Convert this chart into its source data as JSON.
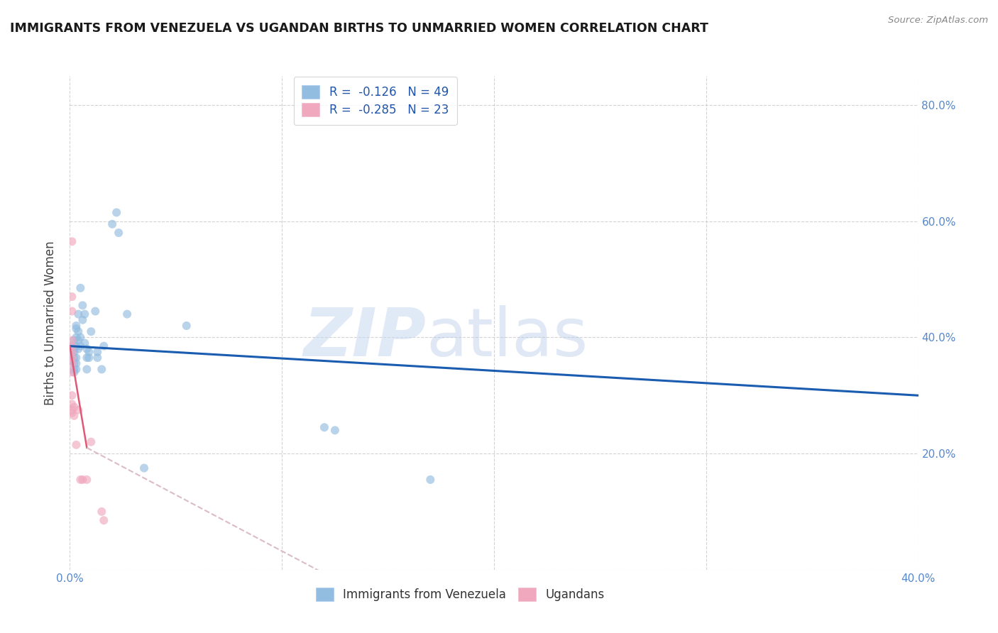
{
  "title": "IMMIGRANTS FROM VENEZUELA VS UGANDAN BIRTHS TO UNMARRIED WOMEN CORRELATION CHART",
  "source": "Source: ZipAtlas.com",
  "ylabel": "Births to Unmarried Women",
  "watermark_zip": "ZIP",
  "watermark_atlas": "atlas",
  "legend1_label": "R =  -0.126   N = 49",
  "legend2_label": "R =  -0.285   N = 23",
  "blue_scatter": [
    [
      0.001,
      0.385
    ],
    [
      0.001,
      0.375
    ],
    [
      0.001,
      0.37
    ],
    [
      0.001,
      0.36
    ],
    [
      0.002,
      0.395
    ],
    [
      0.002,
      0.38
    ],
    [
      0.002,
      0.375
    ],
    [
      0.002,
      0.365
    ],
    [
      0.002,
      0.355
    ],
    [
      0.002,
      0.345
    ],
    [
      0.002,
      0.34
    ],
    [
      0.003,
      0.42
    ],
    [
      0.003,
      0.415
    ],
    [
      0.003,
      0.4
    ],
    [
      0.003,
      0.385
    ],
    [
      0.003,
      0.365
    ],
    [
      0.003,
      0.355
    ],
    [
      0.003,
      0.345
    ],
    [
      0.004,
      0.44
    ],
    [
      0.004,
      0.41
    ],
    [
      0.004,
      0.395
    ],
    [
      0.004,
      0.38
    ],
    [
      0.005,
      0.485
    ],
    [
      0.005,
      0.4
    ],
    [
      0.005,
      0.385
    ],
    [
      0.006,
      0.455
    ],
    [
      0.006,
      0.43
    ],
    [
      0.007,
      0.44
    ],
    [
      0.007,
      0.39
    ],
    [
      0.008,
      0.38
    ],
    [
      0.008,
      0.365
    ],
    [
      0.008,
      0.345
    ],
    [
      0.009,
      0.375
    ],
    [
      0.009,
      0.365
    ],
    [
      0.01,
      0.41
    ],
    [
      0.012,
      0.445
    ],
    [
      0.013,
      0.375
    ],
    [
      0.013,
      0.365
    ],
    [
      0.015,
      0.345
    ],
    [
      0.016,
      0.385
    ],
    [
      0.02,
      0.595
    ],
    [
      0.022,
      0.615
    ],
    [
      0.023,
      0.58
    ],
    [
      0.027,
      0.44
    ],
    [
      0.035,
      0.175
    ],
    [
      0.055,
      0.42
    ],
    [
      0.12,
      0.245
    ],
    [
      0.125,
      0.24
    ],
    [
      0.17,
      0.155
    ]
  ],
  "pink_scatter": [
    [
      0.001,
      0.565
    ],
    [
      0.001,
      0.47
    ],
    [
      0.001,
      0.445
    ],
    [
      0.001,
      0.395
    ],
    [
      0.001,
      0.385
    ],
    [
      0.001,
      0.375
    ],
    [
      0.001,
      0.365
    ],
    [
      0.001,
      0.355
    ],
    [
      0.001,
      0.34
    ],
    [
      0.001,
      0.3
    ],
    [
      0.001,
      0.285
    ],
    [
      0.001,
      0.275
    ],
    [
      0.001,
      0.27
    ],
    [
      0.002,
      0.28
    ],
    [
      0.002,
      0.265
    ],
    [
      0.003,
      0.215
    ],
    [
      0.004,
      0.275
    ],
    [
      0.005,
      0.155
    ],
    [
      0.006,
      0.155
    ],
    [
      0.008,
      0.155
    ],
    [
      0.01,
      0.22
    ],
    [
      0.015,
      0.1
    ],
    [
      0.016,
      0.085
    ]
  ],
  "blue_line": {
    "x": [
      0.0,
      0.4
    ],
    "y": [
      0.385,
      0.3
    ]
  },
  "pink_line_solid": {
    "x": [
      0.0,
      0.008
    ],
    "y": [
      0.385,
      0.21
    ]
  },
  "pink_line_dash": {
    "x": [
      0.008,
      0.22
    ],
    "y": [
      0.21,
      -0.2
    ]
  },
  "xlim": [
    0.0,
    0.4
  ],
  "ylim": [
    0.0,
    0.85
  ],
  "yticks": [
    0.0,
    0.2,
    0.4,
    0.6,
    0.8
  ],
  "xticks": [
    0.0,
    0.1,
    0.2,
    0.3,
    0.4
  ],
  "xtick_labels": [
    "0.0%",
    "",
    "",
    "",
    "40.0%"
  ],
  "bg_color": "#ffffff",
  "grid_color": "#c8c8c8",
  "scatter_blue_color": "#92bce0",
  "scatter_pink_color": "#f0a8be",
  "line_blue_color": "#1a5cb0",
  "line_pink_solid_color": "#e05878",
  "line_pink_dash_color": "#dbbbc8",
  "scatter_size": 75,
  "scatter_alpha": 0.65
}
